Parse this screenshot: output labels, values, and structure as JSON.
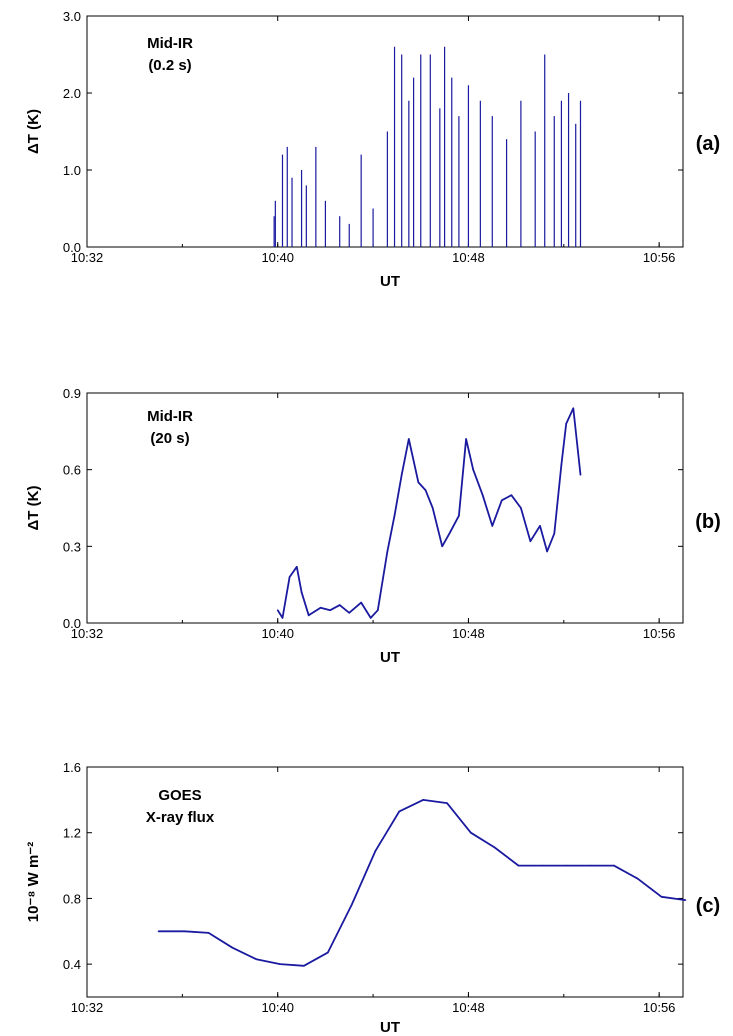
{
  "chart_data": [
    {
      "type": "line",
      "panel_label": "(a)",
      "annotation": [
        "Mid-IR",
        "(0.2 s)"
      ],
      "xlabel": "UT",
      "ylabel": "ΔT (K)",
      "x_ticks": [
        "10:32",
        "10:40",
        "10:48",
        "10:56"
      ],
      "y_ticks": [
        "0.0",
        "1.0",
        "2.0",
        "3.0"
      ],
      "xlim": [
        "10:32",
        "10:57"
      ],
      "ylim": [
        0,
        3.0
      ],
      "color": "#1a1aa0",
      "series": [
        {
          "x": [
            "10:39.85",
            "10:39.9",
            "10:40.2",
            "10:40.4",
            "10:40.6",
            "10:41.0",
            "10:41.2",
            "10:41.6",
            "10:42.0",
            "10:42.6",
            "10:43.0",
            "10:43.5",
            "10:44.0",
            "10:44.6",
            "10:44.9",
            "10:45.2",
            "10:45.5",
            "10:45.7",
            "10:46.0",
            "10:46.4",
            "10:46.8",
            "10:47.0",
            "10:47.3",
            "10:47.6",
            "10:48.0",
            "10:48.5",
            "10:49.0",
            "10:49.6",
            "10:50.2",
            "10:50.8",
            "10:51.2",
            "10:51.6",
            "10:51.9",
            "10:52.2",
            "10:52.5",
            "10:52.7"
          ],
          "y": [
            0.4,
            0.6,
            1.2,
            1.3,
            0.9,
            1.0,
            0.8,
            1.3,
            0.6,
            0.4,
            0.3,
            1.2,
            0.5,
            1.5,
            2.6,
            2.5,
            1.9,
            2.2,
            2.5,
            2.5,
            1.8,
            2.6,
            2.2,
            1.7,
            2.1,
            1.9,
            1.7,
            1.4,
            1.9,
            1.5,
            2.5,
            1.7,
            1.9,
            2.0,
            1.6,
            1.9
          ]
        }
      ]
    },
    {
      "type": "line",
      "panel_label": "(b)",
      "annotation": [
        "Mid-IR",
        "(20 s)"
      ],
      "xlabel": "UT",
      "ylabel": "ΔT (K)",
      "x_ticks": [
        "10:32",
        "10:40",
        "10:48",
        "10:56"
      ],
      "y_ticks": [
        "0.0",
        "0.3",
        "0.6",
        "0.9"
      ],
      "xlim": [
        "10:32",
        "10:57"
      ],
      "ylim": [
        0,
        0.9
      ],
      "color": "#1a1aa0",
      "series": [
        {
          "x": [
            "10:40.0",
            "10:40.2",
            "10:40.5",
            "10:40.8",
            "10:41.0",
            "10:41.3",
            "10:41.8",
            "10:42.2",
            "10:42.6",
            "10:43.0",
            "10:43.5",
            "10:43.9",
            "10:44.2",
            "10:44.6",
            "10:44.9",
            "10:45.2",
            "10:45.5",
            "10:45.9",
            "10:46.2",
            "10:46.5",
            "10:46.9",
            "10:47.2",
            "10:47.6",
            "10:47.9",
            "10:48.2",
            "10:48.6",
            "10:49.0",
            "10:49.4",
            "10:49.8",
            "10:50.2",
            "10:50.6",
            "10:51.0",
            "10:51.3",
            "10:51.6",
            "10:51.9",
            "10:52.1",
            "10:52.4",
            "10:52.7"
          ],
          "y": [
            0.05,
            0.02,
            0.18,
            0.22,
            0.12,
            0.03,
            0.06,
            0.05,
            0.07,
            0.04,
            0.08,
            0.02,
            0.05,
            0.28,
            0.42,
            0.58,
            0.72,
            0.55,
            0.52,
            0.45,
            0.3,
            0.35,
            0.42,
            0.72,
            0.6,
            0.5,
            0.38,
            0.48,
            0.5,
            0.45,
            0.32,
            0.38,
            0.28,
            0.35,
            0.62,
            0.78,
            0.84,
            0.58
          ]
        }
      ]
    },
    {
      "type": "line",
      "panel_label": "(c)",
      "annotation": [
        "GOES",
        "X-ray flux"
      ],
      "xlabel": "UT",
      "ylabel": "10⁻⁸ W m⁻²",
      "x_ticks": [
        "10:32",
        "10:40",
        "10:48",
        "10:56"
      ],
      "y_ticks": [
        "0.4",
        "0.8",
        "1.2",
        "1.6"
      ],
      "xlim": [
        "10:32",
        "10:57"
      ],
      "ylim": [
        0.2,
        1.6
      ],
      "color": "#1a1aa0",
      "series": [
        {
          "x": [
            "10:35.0",
            "10:36.1",
            "10:37.1",
            "10:38.1",
            "10:39.1",
            "10:40.1",
            "10:41.1",
            "10:42.1",
            "10:43.1",
            "10:44.1",
            "10:45.1",
            "10:46.1",
            "10:47.1",
            "10:48.1",
            "10:49.1",
            "10:50.1",
            "10:51.1",
            "10:52.1",
            "10:53.1",
            "10:54.1",
            "10:55.1",
            "10:56.1",
            "10:57.1"
          ],
          "y": [
            0.6,
            0.6,
            0.59,
            0.5,
            0.43,
            0.4,
            0.39,
            0.47,
            0.76,
            1.09,
            1.33,
            1.4,
            1.38,
            1.2,
            1.11,
            1.0,
            1.0,
            1.0,
            1.0,
            1.0,
            0.92,
            0.81,
            0.79
          ]
        }
      ]
    }
  ]
}
